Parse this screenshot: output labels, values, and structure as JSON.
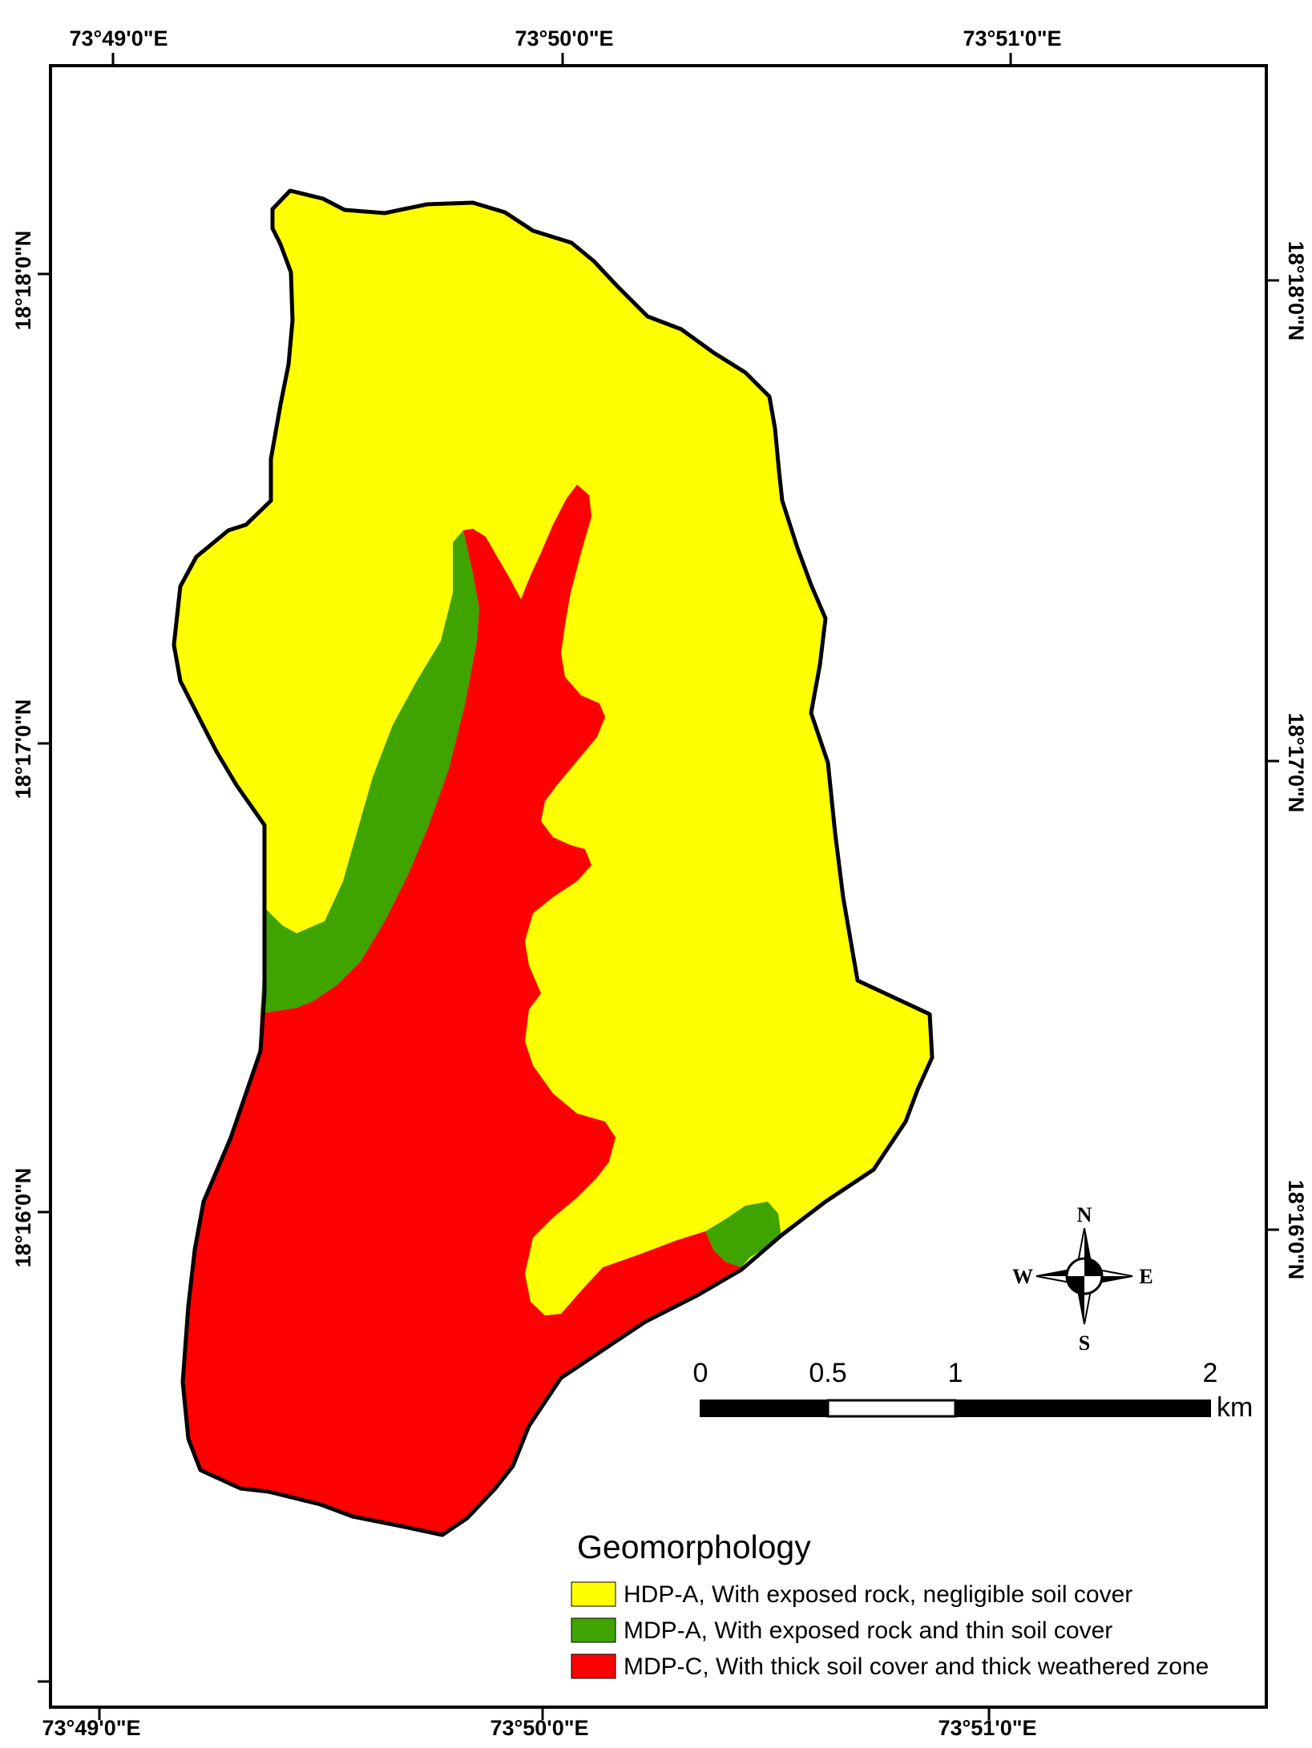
{
  "colors": {
    "hdp_a": "#FFFF00",
    "mdp_a": "#3FA300",
    "mdp_c": "#FF0000",
    "outline": "#000000"
  },
  "graticule": {
    "top": [
      "73°49'0\"E",
      "73°50'0\"E",
      "73°51'0\"E"
    ],
    "bottom": [
      "73°49'0\"E",
      "73°50'0\"E",
      "73°51'0\"E"
    ],
    "left": [
      "18°18'0\"N",
      "18°17'0\"N",
      "18°16'0\"N"
    ],
    "right": [
      "18°18'0\"N",
      "18°17'0\"N",
      "18°16'0\"N"
    ]
  },
  "compass": {
    "n": "N",
    "s": "S",
    "e": "E",
    "w": "W"
  },
  "scale_bar": {
    "ticks": [
      "0",
      "0.5",
      "1",
      "2"
    ],
    "unit": "km"
  },
  "legend": {
    "title": "Geomorphology",
    "items": [
      {
        "key": "hdp_a",
        "label": "HDP-A, With exposed rock, negligible soil cover"
      },
      {
        "key": "mdp_a",
        "label": "MDP-A, With exposed rock and thin soil cover"
      },
      {
        "key": "mdp_c",
        "label": "MDP-C, With thick soil cover and thick weathered zone"
      }
    ]
  }
}
